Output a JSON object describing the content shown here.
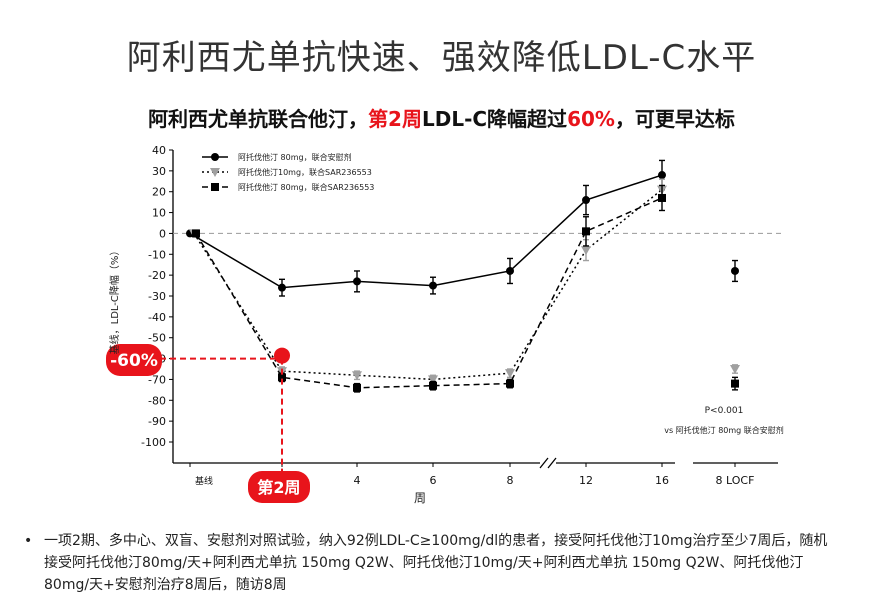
{
  "slide_title": "阿利西尤单抗快速、强效降低LDL-C水平",
  "subtitle": {
    "part1": "阿利西尤单抗联合他汀，",
    "part2": "第2周",
    "part3": "LDL-C降幅超过",
    "part4": "60%",
    "part5": "，可更早达标"
  },
  "colors": {
    "highlight": "#e8141b",
    "marker_red": "#e8141b",
    "series_gray": "#a0a0a0"
  },
  "chart_data": {
    "type": "line",
    "ylabel": "基线，LDL-C降幅（%）",
    "xlabel": "周",
    "ylim": [
      -100,
      40
    ],
    "yticks": [
      40,
      30,
      20,
      10,
      0,
      -10,
      -20,
      -30,
      -40,
      -50,
      -60,
      -70,
      -80,
      -90,
      -100
    ],
    "ytick_labels": [
      "40",
      "30",
      "20",
      "10",
      "0",
      "-10",
      "-20",
      "-30",
      "-40",
      "-50",
      "-60",
      "-70",
      "-80",
      "-90",
      "-100"
    ],
    "x_categories": [
      "基线",
      "2",
      "4",
      "6",
      "8",
      "12",
      "16"
    ],
    "locf_label": "8 LOCF",
    "series": [
      {
        "name": "阿托伐他汀 80mg，联合安慰剂",
        "marker": "circle",
        "style": "solid",
        "values": [
          0,
          -26,
          -23,
          -25,
          -18,
          16,
          28
        ],
        "errors": [
          0,
          4,
          5,
          4,
          6,
          7,
          7
        ],
        "locf": -18,
        "locf_error": 5
      },
      {
        "name": "阿托伐他汀10mg，联合SAR236553",
        "marker": "triangle",
        "style": "dotted",
        "values": [
          0,
          -66,
          -68,
          -70,
          -67,
          -8,
          21
        ],
        "errors": [
          0,
          2,
          2,
          2,
          2,
          5,
          5
        ],
        "locf": -65,
        "locf_error": 2
      },
      {
        "name": "阿托伐他汀 80mg，联合SAR236553",
        "marker": "square",
        "style": "dashed",
        "values": [
          0,
          -69,
          -74,
          -73,
          -72,
          1,
          17
        ],
        "errors": [
          0,
          2,
          2,
          2,
          2,
          7,
          6
        ],
        "locf": -72,
        "locf_error": 3
      }
    ],
    "annotations": {
      "pvalue": "P<0.001",
      "vs_text": "vs 阿托伐他汀 80mg 联合安慰剂",
      "callout_value_label": "-60%",
      "callout_value": -60,
      "callout_week_label": "第2周",
      "callout_week": "2"
    }
  },
  "footnote": "一项2期、多中心、双盲、安慰剂对照试验，纳入92例LDL-C≥100mg/dl的患者，接受阿托伐他汀10mg治疗至少7周后，随机接受阿托伐他汀80mg/天+阿利西尤单抗 150mg Q2W、阿托伐他汀10mg/天+阿利西尤单抗 150mg Q2W、阿托伐他汀80mg/天+安慰剂治疗8周后，随访8周",
  "bullet_symbol": "•"
}
